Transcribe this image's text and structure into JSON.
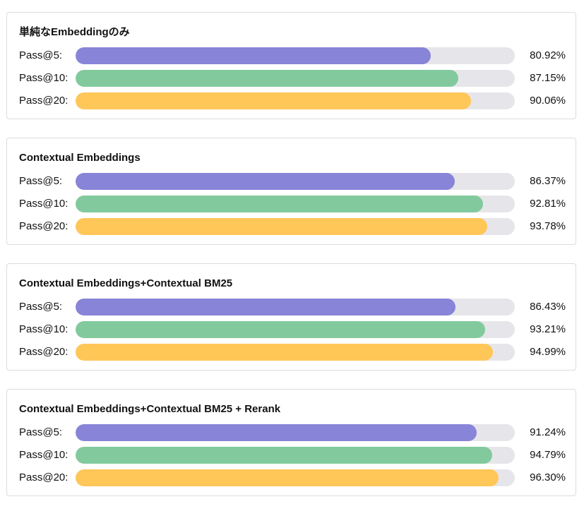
{
  "chart_data": [
    {
      "type": "bar",
      "orientation": "horizontal",
      "title": "単純なEmbeddingのみ",
      "categories": [
        "Pass@5:",
        "Pass@10:",
        "Pass@20:"
      ],
      "values": [
        80.92,
        87.15,
        90.06
      ],
      "value_labels": [
        "80.92%",
        "87.15%",
        "90.06%"
      ],
      "xlim": [
        0,
        100
      ]
    },
    {
      "type": "bar",
      "orientation": "horizontal",
      "title": "Contextual Embeddings",
      "categories": [
        "Pass@5:",
        "Pass@10:",
        "Pass@20:"
      ],
      "values": [
        86.37,
        92.81,
        93.78
      ],
      "value_labels": [
        "86.37%",
        "92.81%",
        "93.78%"
      ],
      "xlim": [
        0,
        100
      ]
    },
    {
      "type": "bar",
      "orientation": "horizontal",
      "title": "Contextual Embeddings+Contextual BM25",
      "categories": [
        "Pass@5:",
        "Pass@10:",
        "Pass@20:"
      ],
      "values": [
        86.43,
        93.21,
        94.99
      ],
      "value_labels": [
        "86.43%",
        "93.21%",
        "94.99%"
      ],
      "xlim": [
        0,
        100
      ]
    },
    {
      "type": "bar",
      "orientation": "horizontal",
      "title": "Contextual Embeddings+Contextual BM25 + Rerank",
      "categories": [
        "Pass@5:",
        "Pass@10:",
        "Pass@20:"
      ],
      "values": [
        91.24,
        94.79,
        96.3
      ],
      "value_labels": [
        "91.24%",
        "94.79%",
        "96.30%"
      ],
      "xlim": [
        0,
        100
      ]
    }
  ],
  "colors": {
    "Pass@5": "#8884d8",
    "Pass@10": "#82ca9d",
    "Pass@20": "#ffc658",
    "track": "#e6e6ea",
    "card_border": "#dcdcdf"
  }
}
